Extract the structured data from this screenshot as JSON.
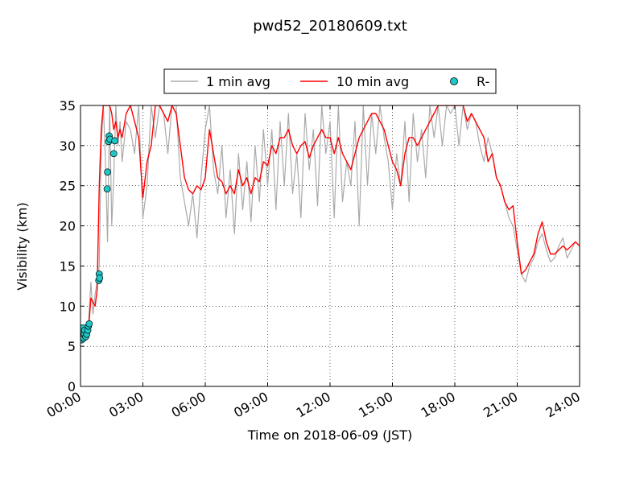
{
  "chart_data": {
    "type": "line",
    "title": "pwd52_20180609.txt",
    "xlabel": "Time on 2018-06-09 (JST)",
    "ylabel": "Visibility (km)",
    "xlim": [
      0,
      24
    ],
    "ylim": [
      0,
      35
    ],
    "grid": true,
    "legend_position": "top-center, above plot",
    "x_ticks": [
      {
        "value": 0,
        "label": "00:00"
      },
      {
        "value": 3,
        "label": "03:00"
      },
      {
        "value": 6,
        "label": "06:00"
      },
      {
        "value": 9,
        "label": "09:00"
      },
      {
        "value": 12,
        "label": "12:00"
      },
      {
        "value": 15,
        "label": "15:00"
      },
      {
        "value": 18,
        "label": "18:00"
      },
      {
        "value": 21,
        "label": "21:00"
      },
      {
        "value": 24,
        "label": "24:00"
      }
    ],
    "y_ticks": [
      {
        "value": 0,
        "label": "0"
      },
      {
        "value": 5,
        "label": "5"
      },
      {
        "value": 10,
        "label": "10"
      },
      {
        "value": 15,
        "label": "15"
      },
      {
        "value": 20,
        "label": "20"
      },
      {
        "value": 25,
        "label": "25"
      },
      {
        "value": 30,
        "label": "30"
      },
      {
        "value": 35,
        "label": "35"
      }
    ],
    "series": [
      {
        "name": "1 min avg",
        "style": "line",
        "color": "#aaaaaa",
        "x": [
          0.0,
          0.1,
          0.2,
          0.3,
          0.4,
          0.5,
          0.6,
          0.7,
          0.8,
          0.9,
          1.0,
          1.1,
          1.2,
          1.3,
          1.4,
          1.5,
          1.6,
          1.7,
          1.8,
          1.9,
          2.0,
          2.2,
          2.4,
          2.6,
          2.8,
          3.0,
          3.2,
          3.4,
          3.6,
          3.8,
          4.0,
          4.2,
          4.4,
          4.6,
          4.8,
          5.0,
          5.2,
          5.4,
          5.6,
          5.8,
          6.0,
          6.2,
          6.4,
          6.6,
          6.8,
          7.0,
          7.2,
          7.4,
          7.6,
          7.8,
          8.0,
          8.2,
          8.4,
          8.6,
          8.8,
          9.0,
          9.2,
          9.4,
          9.6,
          9.8,
          10.0,
          10.2,
          10.4,
          10.6,
          10.8,
          11.0,
          11.2,
          11.4,
          11.6,
          11.8,
          12.0,
          12.2,
          12.4,
          12.6,
          12.8,
          13.0,
          13.2,
          13.4,
          13.6,
          13.8,
          14.0,
          14.2,
          14.4,
          14.6,
          14.8,
          15.0,
          15.2,
          15.4,
          15.6,
          15.8,
          16.0,
          16.2,
          16.4,
          16.6,
          16.8,
          17.0,
          17.2,
          17.4,
          17.6,
          17.8,
          18.0,
          18.2,
          18.4,
          18.6,
          18.8,
          19.0,
          19.2,
          19.4,
          19.6,
          19.8,
          20.0,
          20.2,
          20.4,
          20.6,
          20.8,
          21.0,
          21.2,
          21.4,
          21.6,
          21.8,
          22.0,
          22.2,
          22.4,
          22.6,
          22.8,
          23.0,
          23.2,
          23.4,
          23.6,
          23.8,
          24.0
        ],
        "values": [
          6.5,
          5.8,
          7.5,
          6.0,
          8.5,
          13.0,
          9.0,
          11.5,
          13.0,
          15.0,
          30.0,
          35.0,
          28.0,
          18.0,
          35.0,
          20.0,
          26.0,
          35.0,
          30.0,
          33.0,
          28.0,
          33.0,
          32.0,
          29.0,
          35.0,
          21.0,
          25.0,
          35.0,
          31.0,
          35.0,
          34.0,
          29.0,
          35.0,
          35.0,
          26.0,
          23.0,
          20.0,
          24.0,
          18.5,
          26.0,
          32.0,
          35.0,
          27.0,
          24.0,
          30.0,
          21.0,
          27.0,
          19.0,
          29.0,
          22.0,
          28.0,
          20.5,
          30.0,
          23.0,
          32.0,
          25.0,
          32.0,
          22.0,
          33.0,
          25.0,
          34.0,
          24.0,
          29.0,
          21.0,
          34.0,
          27.0,
          32.0,
          22.5,
          35.0,
          29.0,
          33.0,
          21.0,
          35.0,
          23.0,
          28.0,
          25.0,
          33.0,
          20.0,
          35.0,
          25.0,
          34.0,
          29.0,
          35.0,
          31.0,
          28.0,
          22.0,
          29.0,
          25.0,
          33.0,
          23.0,
          34.0,
          28.0,
          32.0,
          26.0,
          35.0,
          31.0,
          35.0,
          30.0,
          35.0,
          34.0,
          35.0,
          30.0,
          35.0,
          32.0,
          34.0,
          33.0,
          30.0,
          28.0,
          31.0,
          29.0,
          26.0,
          25.0,
          23.0,
          21.0,
          20.0,
          17.0,
          14.0,
          13.0,
          15.0,
          16.0,
          18.0,
          19.0,
          17.0,
          15.5,
          16.0,
          17.5,
          18.5,
          16.0,
          17.0,
          18.0,
          17.5
        ]
      },
      {
        "name": "10 min avg",
        "style": "line",
        "color": "#ff0000",
        "x": [
          0.0,
          0.1,
          0.2,
          0.3,
          0.4,
          0.5,
          0.6,
          0.7,
          0.8,
          0.9,
          1.0,
          1.1,
          1.2,
          1.3,
          1.4,
          1.5,
          1.6,
          1.7,
          1.8,
          1.9,
          2.0,
          2.2,
          2.4,
          2.6,
          2.8,
          3.0,
          3.2,
          3.4,
          3.6,
          3.8,
          4.0,
          4.2,
          4.4,
          4.6,
          4.8,
          5.0,
          5.2,
          5.4,
          5.6,
          5.8,
          6.0,
          6.2,
          6.4,
          6.6,
          6.8,
          7.0,
          7.2,
          7.4,
          7.6,
          7.8,
          8.0,
          8.2,
          8.4,
          8.6,
          8.8,
          9.0,
          9.2,
          9.4,
          9.6,
          9.8,
          10.0,
          10.2,
          10.4,
          10.6,
          10.8,
          11.0,
          11.2,
          11.4,
          11.6,
          11.8,
          12.0,
          12.2,
          12.4,
          12.6,
          12.8,
          13.0,
          13.2,
          13.4,
          13.6,
          13.8,
          14.0,
          14.2,
          14.4,
          14.6,
          14.8,
          15.0,
          15.2,
          15.4,
          15.6,
          15.8,
          16.0,
          16.2,
          16.4,
          16.6,
          16.8,
          17.0,
          17.2,
          17.4,
          17.6,
          17.8,
          18.0,
          18.2,
          18.4,
          18.6,
          18.8,
          19.0,
          19.2,
          19.4,
          19.6,
          19.8,
          20.0,
          20.2,
          20.4,
          20.6,
          20.8,
          21.0,
          21.2,
          21.4,
          21.6,
          21.8,
          22.0,
          22.2,
          22.4,
          22.6,
          22.8,
          23.0,
          23.2,
          23.4,
          23.6,
          23.8,
          24.0
        ],
        "values": [
          6.0,
          6.0,
          6.2,
          6.5,
          7.5,
          11.0,
          10.5,
          10.0,
          12.0,
          25.0,
          32.0,
          35.0,
          35.0,
          35.0,
          35.0,
          34.0,
          32.0,
          33.0,
          31.0,
          32.0,
          31.0,
          34.0,
          35.0,
          33.0,
          31.0,
          23.5,
          28.0,
          30.0,
          35.0,
          35.0,
          34.0,
          33.0,
          35.0,
          34.0,
          30.0,
          26.0,
          24.5,
          24.0,
          25.0,
          24.5,
          26.0,
          32.0,
          29.0,
          26.0,
          25.5,
          24.0,
          25.0,
          24.0,
          27.0,
          25.0,
          26.0,
          24.0,
          26.0,
          25.5,
          28.0,
          27.5,
          30.0,
          29.0,
          31.0,
          31.0,
          32.0,
          30.0,
          29.0,
          30.0,
          30.5,
          28.5,
          30.0,
          31.0,
          32.0,
          31.0,
          31.0,
          29.0,
          31.0,
          29.0,
          28.0,
          27.0,
          29.0,
          31.0,
          32.0,
          33.0,
          34.0,
          34.0,
          33.0,
          32.0,
          30.0,
          28.0,
          27.0,
          25.0,
          29.0,
          31.0,
          31.0,
          30.0,
          31.0,
          32.0,
          33.0,
          34.0,
          35.0,
          35.0,
          35.0,
          35.0,
          35.0,
          35.0,
          35.0,
          33.0,
          34.0,
          33.0,
          32.0,
          31.0,
          28.0,
          29.0,
          26.0,
          25.0,
          23.0,
          22.0,
          22.5,
          18.0,
          14.0,
          14.5,
          15.5,
          16.5,
          19.0,
          20.5,
          18.0,
          16.5,
          16.5,
          17.0,
          17.5,
          17.0,
          17.5,
          18.0,
          17.5
        ]
      },
      {
        "name": "R-",
        "style": "marker",
        "color": "#1ec8c8",
        "x": [
          0.05,
          0.08,
          0.1,
          0.12,
          0.15,
          0.18,
          0.2,
          0.25,
          0.3,
          0.35,
          0.38,
          0.42,
          0.88,
          0.9,
          0.92,
          1.28,
          1.3,
          1.35,
          1.38,
          1.42,
          1.6,
          1.65
        ],
        "values": [
          5.8,
          6.2,
          6.8,
          7.3,
          6.0,
          6.5,
          7.0,
          6.2,
          6.5,
          7.0,
          7.5,
          7.8,
          13.2,
          14.0,
          13.5,
          24.6,
          26.7,
          30.5,
          31.2,
          30.8,
          29.0,
          30.6
        ]
      }
    ]
  }
}
